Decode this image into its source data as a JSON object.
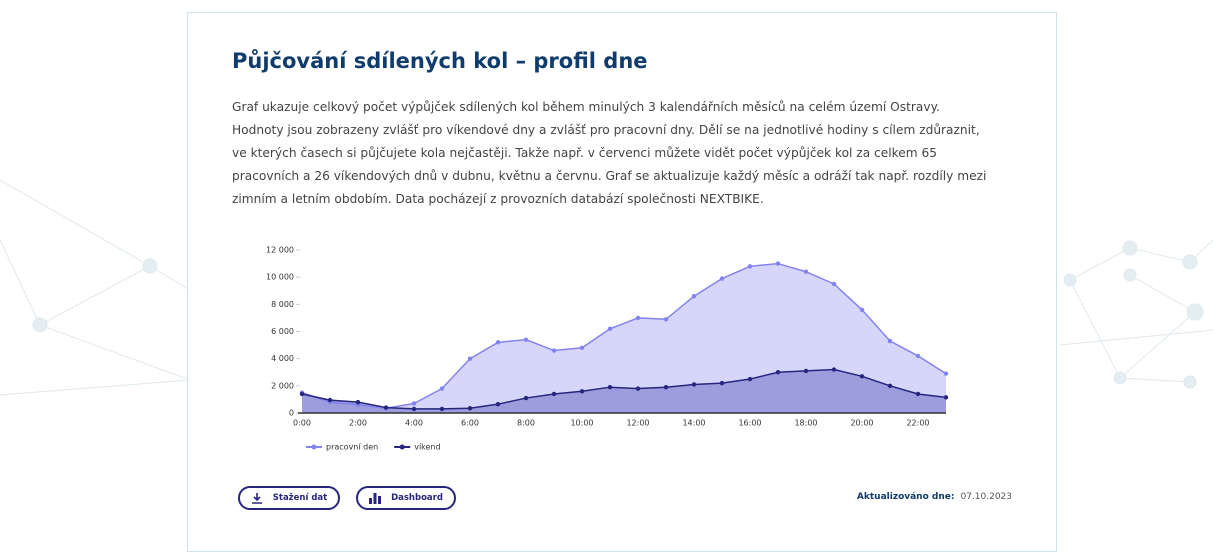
{
  "header": {
    "title": "Půjčování sdílených kol – profil dne"
  },
  "description": "Graf ukazuje celkový počet výpůjček sdílených kol během minulých 3 kalendářních měsíců na celém území Ostravy. Hodnoty jsou zobrazeny zvlášť pro víkendové dny a zvlášť pro pracovní dny. Dělí se na jednotlivé hodiny s cílem zdůraznit, ve kterých časech si půjčujete kola nejčastěji. Takže např. v červenci můžete vidět počet výpůjček kol za celkem 65 pracovních a 26 víkendových dnů v dubnu, květnu a červnu. Graf se aktualizuje každý měsíc a odráží tak např. rozdíly mezi zimním a letním obdobím. Data pocházejí z provozních databází společnosti NEXTBIKE.",
  "chart_data": {
    "type": "area",
    "categories": [
      "0:00",
      null,
      "2:00",
      null,
      "4:00",
      null,
      "6:00",
      null,
      "8:00",
      null,
      "10:00",
      null,
      "12:00",
      null,
      "14:00",
      null,
      "16:00",
      null,
      "18:00",
      null,
      "20:00",
      null,
      "22:00",
      null
    ],
    "series": [
      {
        "name": "pracovní den",
        "color": "#8383ee",
        "fill_color": "#d6d6fb",
        "values": [
          1500,
          800,
          600,
          350,
          700,
          1800,
          4000,
          5200,
          5400,
          4600,
          4800,
          6200,
          7000,
          6900,
          8600,
          9900,
          10800,
          11000,
          10400,
          9500,
          7600,
          5300,
          4200,
          2900
        ]
      },
      {
        "name": "víkend",
        "color": "#26267e",
        "fill_color": "#9d9dde",
        "values": [
          1400,
          950,
          800,
          400,
          300,
          300,
          350,
          650,
          1100,
          1400,
          1600,
          1900,
          1800,
          1900,
          2100,
          2200,
          2500,
          3000,
          3100,
          3200,
          2700,
          2000,
          1400,
          1150
        ]
      }
    ],
    "ylim": [
      0,
      12000
    ],
    "yticks": [
      0,
      {
        "value": 2000,
        "label": "2 000"
      },
      {
        "value": 4000,
        "label": "4 000"
      },
      {
        "value": 6000,
        "label": "6 000"
      },
      {
        "value": 8000,
        "label": "8 000"
      },
      {
        "value": 10000,
        "label": "10 000"
      },
      {
        "value": 12000,
        "label": "12 000"
      }
    ],
    "legend": "bottom-left"
  },
  "buttons": [
    "Stažení dat",
    "Dashboard"
  ],
  "updated": {
    "label": "Aktualizováno dne:",
    "date": "07.10.2023"
  }
}
